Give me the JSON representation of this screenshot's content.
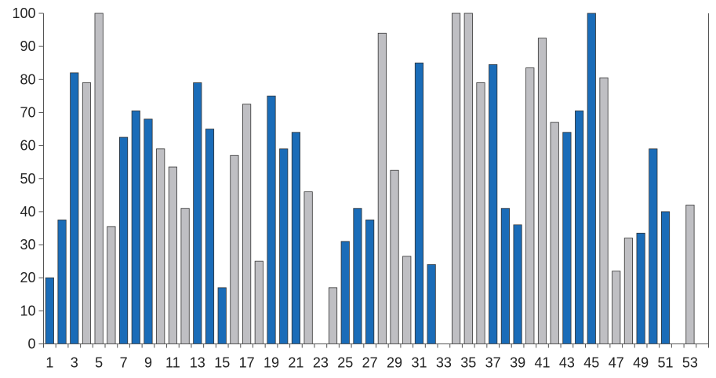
{
  "chart_data": {
    "type": "bar",
    "title": "",
    "xlabel": "",
    "ylabel": "",
    "ylim": [
      0,
      100
    ],
    "yticks": [
      0,
      10,
      20,
      30,
      40,
      50,
      60,
      70,
      80,
      90,
      100
    ],
    "grid": false,
    "legend": "none",
    "categories": [
      1,
      2,
      3,
      4,
      5,
      6,
      7,
      8,
      9,
      10,
      11,
      12,
      13,
      14,
      15,
      16,
      17,
      18,
      19,
      20,
      21,
      22,
      23,
      24,
      25,
      26,
      27,
      28,
      29,
      30,
      31,
      32,
      33,
      34,
      35,
      36,
      37,
      38,
      39,
      40,
      41,
      42,
      43,
      44,
      45,
      46,
      47,
      48,
      49,
      50,
      51,
      52,
      53,
      54
    ],
    "x_tick_labels": [
      1,
      3,
      5,
      7,
      9,
      11,
      13,
      15,
      17,
      19,
      21,
      23,
      25,
      27,
      29,
      31,
      33,
      35,
      37,
      39,
      41,
      43,
      45,
      47,
      49,
      51,
      53
    ],
    "values": [
      20,
      37.5,
      82,
      79,
      100,
      35.5,
      62.5,
      70.5,
      68,
      59,
      53.5,
      41,
      79,
      65,
      17,
      57,
      72.5,
      25,
      75,
      59,
      64,
      46,
      null,
      17,
      31,
      41,
      37.5,
      94,
      52.5,
      26.5,
      85,
      24,
      null,
      100,
      100,
      79,
      84.5,
      41,
      36,
      83.5,
      92.5,
      67,
      64,
      70.5,
      100,
      80.5,
      22,
      32,
      33.5,
      59,
      40,
      null,
      42,
      null
    ],
    "bar_colors": [
      "blue",
      "blue",
      "blue",
      "gray",
      "gray",
      "gray",
      "blue",
      "blue",
      "blue",
      "gray",
      "gray",
      "gray",
      "blue",
      "blue",
      "blue",
      "gray",
      "gray",
      "gray",
      "blue",
      "blue",
      "blue",
      "gray",
      "gray",
      "gray",
      "blue",
      "blue",
      "blue",
      "gray",
      "gray",
      "gray",
      "blue",
      "blue",
      "blue",
      "gray",
      "gray",
      "gray",
      "blue",
      "blue",
      "blue",
      "gray",
      "gray",
      "gray",
      "blue",
      "blue",
      "blue",
      "gray",
      "gray",
      "gray",
      "blue",
      "blue",
      "blue",
      "gray",
      "gray",
      "gray"
    ],
    "colors": {
      "blue": "#1a6cb8",
      "gray": "#bfbfc3",
      "bar_stroke": "#333333",
      "axis": "#555555"
    }
  }
}
